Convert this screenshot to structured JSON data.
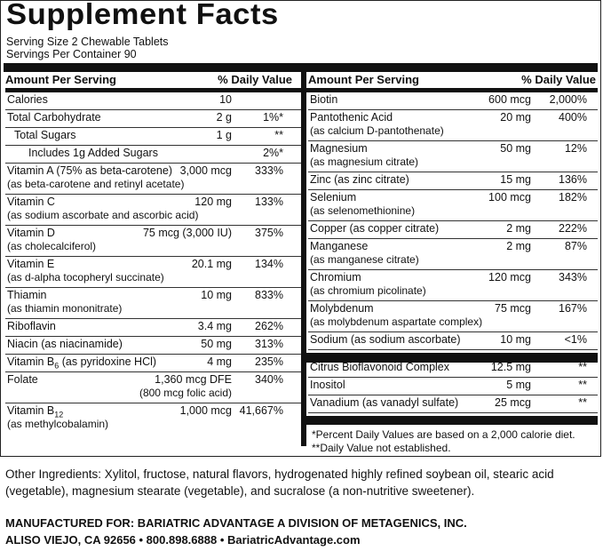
{
  "title": "Supplement Facts",
  "serving_size": "Serving Size 2 Chewable Tablets",
  "servings_per_container": "Servings Per Container 90",
  "header": {
    "amount": "Amount Per Serving",
    "dv": "% Daily Value"
  },
  "left": [
    {
      "label": "Calories",
      "amount": "10",
      "dv": ""
    },
    {
      "label": "Total Carbohydrate",
      "amount": "2 g",
      "dv": "1%*"
    },
    {
      "label": "Total Sugars",
      "amount": "1 g",
      "dv": "**"
    },
    {
      "label": "Includes 1g Added Sugars",
      "amount": "",
      "dv": "2%*"
    },
    {
      "label": "Vitamin A (75% as beta-carotene)",
      "sub": "(as beta-carotene and retinyl acetate)",
      "amount": "3,000 mcg",
      "dv": "333%"
    },
    {
      "label": "Vitamin C",
      "sub": "(as sodium ascorbate and ascorbic acid)",
      "amount": "120 mg",
      "dv": "133%"
    },
    {
      "label": "Vitamin D",
      "sub": "(as cholecalciferol)",
      "amount": "75 mcg (3,000 IU)",
      "dv": "375%"
    },
    {
      "label": "Vitamin E",
      "sub": "(as d-alpha tocopheryl succinate)",
      "amount": "20.1 mg",
      "dv": "134%"
    },
    {
      "label": "Thiamin",
      "sub": "(as thiamin mononitrate)",
      "amount": "10 mg",
      "dv": "833%"
    },
    {
      "label": "Riboflavin",
      "amount": "3.4 mg",
      "dv": "262%"
    },
    {
      "label": "Niacin (as niacinamide)",
      "amount": "50 mg",
      "dv": "313%"
    },
    {
      "label_main": "Vitamin B",
      "label_sub": "6",
      "label_rest": " (as pyridoxine HCl)",
      "amount": "4 mg",
      "dv": "235%"
    },
    {
      "label": "Folate",
      "amount": "1,360 mcg DFE",
      "amount2": "(800 mcg folic acid)",
      "dv": "340%"
    },
    {
      "label_main": "Vitamin B",
      "label_sub": "12",
      "sub": "(as methylcobalamin)",
      "amount": "1,000 mcg",
      "dv": "41,667%"
    }
  ],
  "right": [
    {
      "label": "Biotin",
      "amount": "600 mcg",
      "dv": "2,000%"
    },
    {
      "label": "Pantothenic Acid",
      "sub": "(as calcium D-pantothenate)",
      "amount": "20 mg",
      "dv": "400%"
    },
    {
      "label": "Magnesium",
      "sub": "(as magnesium citrate)",
      "amount": "50 mg",
      "dv": "12%"
    },
    {
      "label": "Zinc (as zinc citrate)",
      "amount": "15 mg",
      "dv": "136%"
    },
    {
      "label": "Selenium",
      "sub": "(as selenomethionine)",
      "amount": "100 mcg",
      "dv": "182%"
    },
    {
      "label": "Copper (as copper citrate)",
      "amount": "2 mg",
      "dv": "222%"
    },
    {
      "label": "Manganese",
      "sub": "(as manganese citrate)",
      "amount": "2 mg",
      "dv": "87%"
    },
    {
      "label": "Chromium",
      "sub": "(as chromium picolinate)",
      "amount": "120 mcg",
      "dv": "343%"
    },
    {
      "label": "Molybdenum",
      "sub": "(as molybdenum aspartate complex)",
      "amount": "75 mcg",
      "dv": "167%"
    },
    {
      "label": "Sodium (as sodium ascorbate)",
      "amount": "10 mg",
      "dv": "<1%"
    }
  ],
  "right2": [
    {
      "label": "Citrus Bioflavonoid Complex",
      "amount": "12.5 mg",
      "dv": "**"
    },
    {
      "label": "Inositol",
      "amount": "5 mg",
      "dv": "**"
    },
    {
      "label": "Vanadium (as vanadyl sulfate)",
      "amount": "25 mcg",
      "dv": "**"
    }
  ],
  "footnotes": [
    "*Percent Daily Values are based on a 2,000 calorie diet.",
    "**Daily Value not established."
  ],
  "other_ingredients": "Other Ingredients: Xylitol, fructose, natural flavors, hydrogenated highly refined soybean oil, stearic acid (vegetable), magnesium stearate (vegetable), and sucralose (a non-nutritive sweetener).",
  "manufacturer_line1": "MANUFACTURED FOR: BARIATRIC ADVANTAGE A DIVISION OF METAGENICS, INC.",
  "manufacturer_line2": "ALISO VIEJO, CA 92656 • 800.898.6888 • BariatricAdvantage.com"
}
